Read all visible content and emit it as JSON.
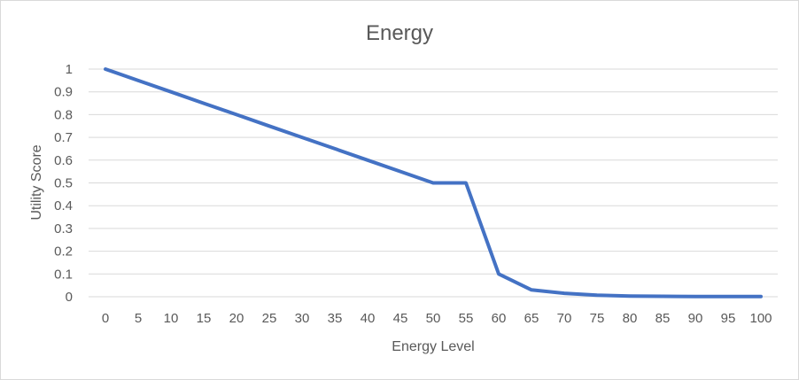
{
  "chart_data": {
    "type": "line",
    "title": "Energy",
    "xlabel": "Energy Level",
    "ylabel": "Utility Score",
    "x": [
      0,
      5,
      10,
      15,
      20,
      25,
      30,
      35,
      40,
      45,
      50,
      55,
      60,
      65,
      70,
      75,
      80,
      85,
      90,
      95,
      100
    ],
    "x_tick_labels": [
      "0",
      "5",
      "10",
      "15",
      "20",
      "25",
      "30",
      "35",
      "40",
      "45",
      "50",
      "55",
      "60",
      "65",
      "70",
      "75",
      "80",
      "85",
      "90",
      "95",
      "100"
    ],
    "y_tick_labels": [
      "0",
      "0.1",
      "0.2",
      "0.3",
      "0.4",
      "0.5",
      "0.6",
      "0.7",
      "0.8",
      "0.9",
      "1"
    ],
    "y_ticks": [
      0,
      0.1,
      0.2,
      0.3,
      0.4,
      0.5,
      0.6,
      0.7,
      0.8,
      0.9,
      1
    ],
    "ylim": [
      0,
      1
    ],
    "grid": true,
    "legend": "none",
    "series": [
      {
        "color": "#4472c4",
        "values": [
          1,
          0.95,
          0.9,
          0.85,
          0.8,
          0.75,
          0.7,
          0.65,
          0.6,
          0.55,
          0.5,
          0.5,
          0.1,
          0.03,
          0.015,
          0.007,
          0.003,
          0.002,
          0.001,
          0.001,
          0.001
        ]
      }
    ]
  }
}
